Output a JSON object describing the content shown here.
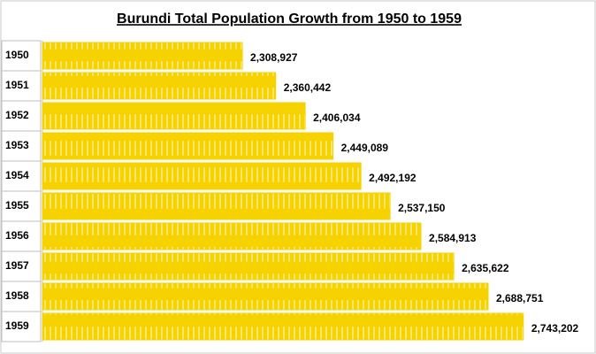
{
  "chart_data": {
    "type": "bar",
    "orientation": "horizontal",
    "title": "Burundi  Total Population Growth from 1950 to 1959",
    "categories": [
      "1950",
      "1951",
      "1952",
      "1953",
      "1954",
      "1955",
      "1956",
      "1957",
      "1958",
      "1959"
    ],
    "values": [
      2308927,
      2360442,
      2406034,
      2449089,
      2492192,
      2537150,
      2584913,
      2635622,
      2688751,
      2743202
    ],
    "value_labels": [
      "2,308,927",
      "2,360,442",
      "2,406,034",
      "2,449,089",
      "2,492,192",
      "2,537,150",
      "2,584,913",
      "2,635,622",
      "2,688,751",
      "2,743,202"
    ],
    "color": "#f6d200",
    "xlim": [
      2000000,
      2850000
    ]
  }
}
